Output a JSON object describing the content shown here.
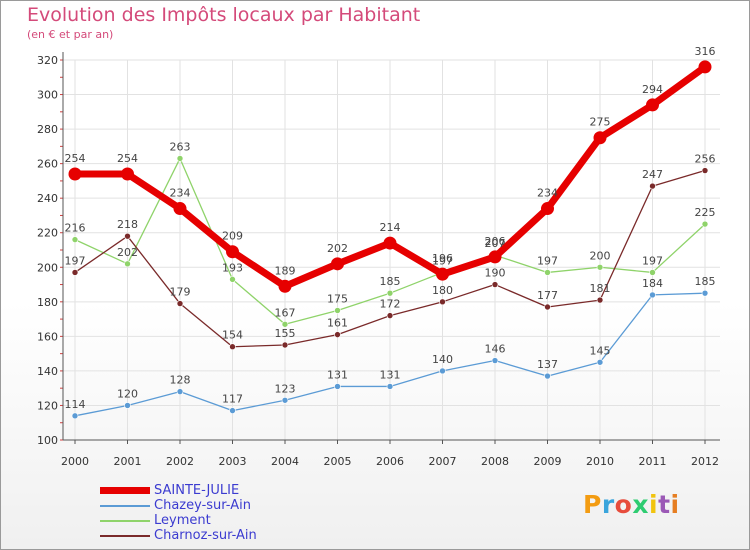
{
  "chart_data": {
    "type": "line",
    "title": "Evolution des Impôts locaux par Habitant",
    "subtitle": "(en € et par an)",
    "xlabel": "",
    "ylabel": "",
    "x": [
      "2000",
      "2001",
      "2002",
      "2003",
      "2004",
      "2005",
      "2006",
      "2007",
      "2008",
      "2009",
      "2010",
      "2011",
      "2012"
    ],
    "ylim": [
      100,
      320
    ],
    "yticks": [
      100,
      120,
      140,
      160,
      180,
      200,
      220,
      240,
      260,
      280,
      300,
      320
    ],
    "grid": true,
    "legend_position": "bottom-left",
    "series": [
      {
        "name": "SAINTE-JULIE",
        "color": "#e60000",
        "bold": true,
        "values": [
          254,
          254,
          234,
          209,
          189,
          202,
          214,
          196,
          206,
          234,
          275,
          294,
          316
        ],
        "labels": [
          "254",
          "254",
          "234",
          "209",
          "189",
          "202",
          "214",
          "196",
          "206",
          "234",
          "275",
          "294",
          "316"
        ]
      },
      {
        "name": "Chazey-sur-Ain",
        "color": "#5b9bd5",
        "bold": false,
        "values": [
          114,
          120,
          128,
          117,
          123,
          131,
          131,
          140,
          146,
          137,
          145,
          184,
          185
        ],
        "labels": [
          "114",
          "120",
          "128",
          "117",
          "123",
          "131",
          "131",
          "140",
          "146",
          "137",
          "145",
          "184",
          "185"
        ]
      },
      {
        "name": "Leyment",
        "color": "#8fd36a",
        "bold": false,
        "values": [
          216,
          202,
          263,
          193,
          167,
          175,
          185,
          197,
          207,
          197,
          200,
          197,
          225
        ],
        "labels": [
          "216",
          "202",
          "263",
          "193",
          "167",
          "175",
          "185",
          "197",
          "207",
          "197",
          "200",
          "197",
          "225"
        ]
      },
      {
        "name": "Charnoz-sur-Ain",
        "color": "#7a2a2a",
        "bold": false,
        "values": [
          197,
          218,
          179,
          154,
          155,
          161,
          172,
          180,
          190,
          177,
          181,
          247,
          256
        ],
        "labels": [
          "197",
          "218",
          "179",
          "154",
          "155",
          "161",
          "172",
          "180",
          "190",
          "177",
          "181",
          "247",
          "256"
        ]
      }
    ]
  },
  "logo": {
    "text": "Proxiti",
    "colors": [
      "#f39c12",
      "#3aa5dc",
      "#e74c3c",
      "#2ecc71",
      "#f1c40f",
      "#9b59b6",
      "#e67e22"
    ]
  }
}
